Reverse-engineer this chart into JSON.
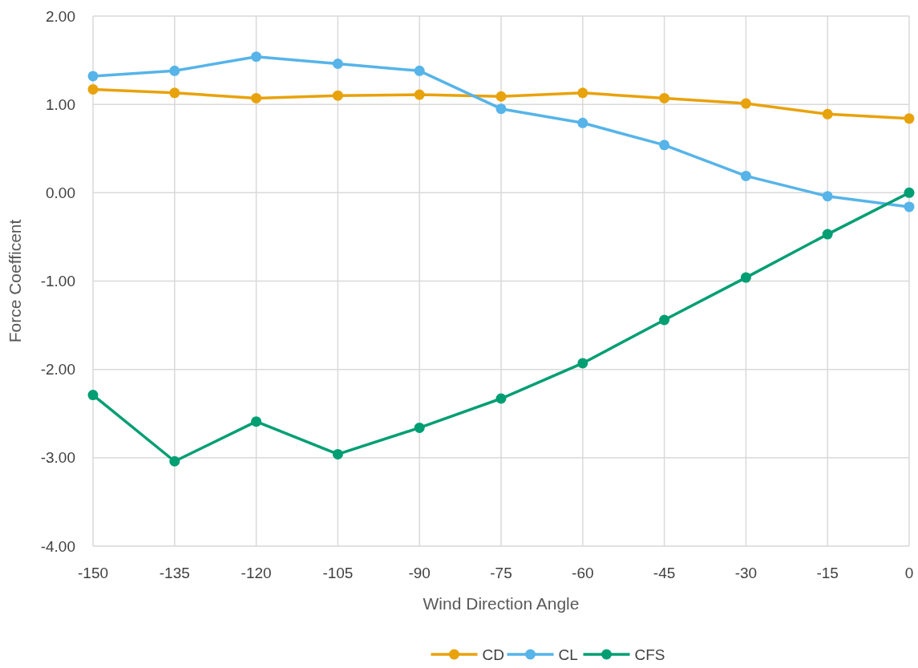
{
  "chart_data": {
    "type": "line",
    "xlabel": "Wind Direction Angle",
    "ylabel": "Force Coefficent",
    "x": [
      -150,
      -135,
      -120,
      -105,
      -90,
      -75,
      -60,
      -45,
      -30,
      -15,
      0
    ],
    "series": [
      {
        "name": "CD",
        "color": "#e8a20c",
        "values": [
          1.17,
          1.13,
          1.07,
          1.1,
          1.11,
          1.09,
          1.13,
          1.07,
          1.01,
          0.89,
          0.84
        ]
      },
      {
        "name": "CL",
        "color": "#56b4e9",
        "values": [
          1.32,
          1.38,
          1.54,
          1.46,
          1.38,
          0.95,
          0.79,
          0.54,
          0.19,
          -0.04,
          -0.16
        ]
      },
      {
        "name": "CFS",
        "color": "#009e73",
        "values": [
          -2.29,
          -3.04,
          -2.59,
          -2.96,
          -2.66,
          -2.33,
          -1.93,
          -1.44,
          -0.96,
          -0.47,
          0
        ]
      }
    ],
    "xlim": [
      -150,
      0
    ],
    "xticks": [
      -150,
      -135,
      -120,
      -105,
      -90,
      -75,
      -60,
      -45,
      -30,
      -15,
      0
    ],
    "ylim": [
      -4,
      2
    ],
    "yticks": [
      {
        "value": -4,
        "label": "-4.00"
      },
      {
        "value": -3,
        "label": "-3.00"
      },
      {
        "value": -2,
        "label": "-2.00"
      },
      {
        "value": -1,
        "label": "-1.00"
      },
      {
        "value": 0,
        "label": "0.00"
      },
      {
        "value": 1,
        "label": "1.00"
      },
      {
        "value": 2,
        "label": "2.00"
      }
    ],
    "grid": true,
    "legend": "bottom",
    "marker": "circle",
    "line_style": "solid"
  }
}
